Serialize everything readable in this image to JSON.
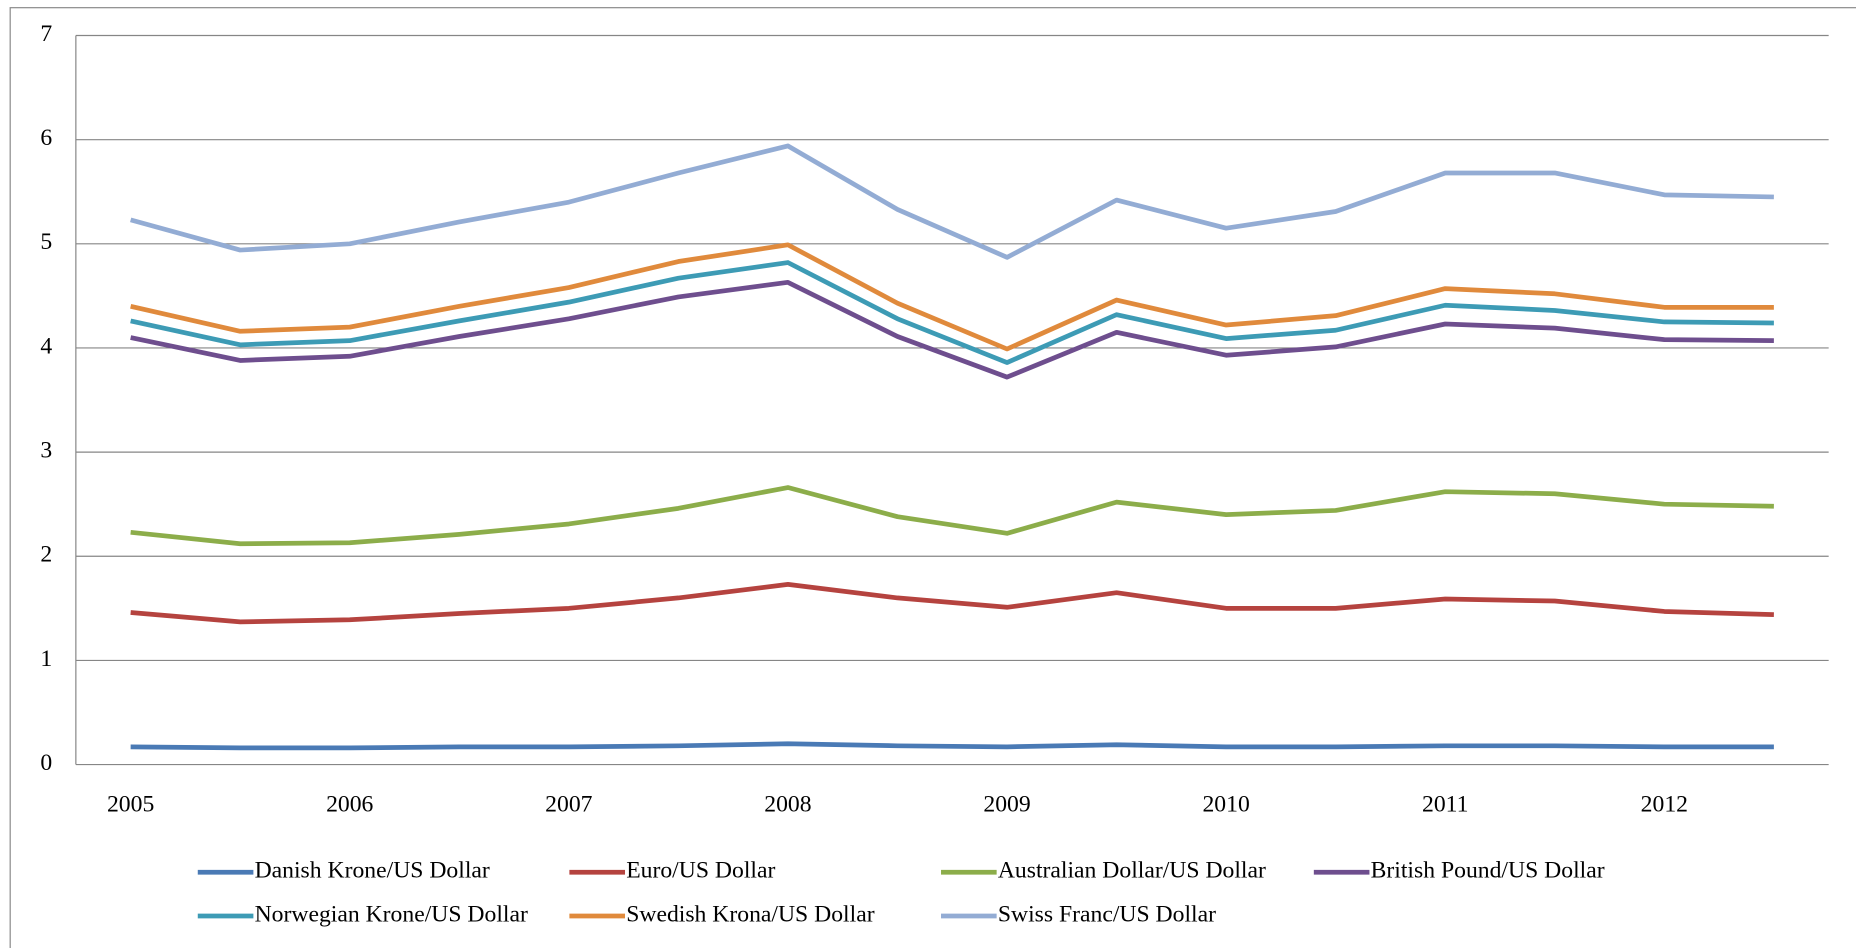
{
  "chart_data": {
    "type": "line",
    "x": [
      2005,
      2005.5,
      2006,
      2006.5,
      2007,
      2007.5,
      2008,
      2008.5,
      2009,
      2009.5,
      2010,
      2010.5,
      2011,
      2011.5,
      2012,
      2012.5
    ],
    "xlim": [
      2004.75,
      2012.75
    ],
    "xticks": [
      2005,
      2006,
      2007,
      2008,
      2009,
      2010,
      2011,
      2012
    ],
    "ylim": [
      0,
      7
    ],
    "yticks": [
      0,
      1,
      2,
      3,
      4,
      5,
      6,
      7
    ],
    "grid": true,
    "legend": "bottom",
    "series": [
      {
        "name": "Danish Krone/US Dollar",
        "color": "#4a7ab5",
        "values": [
          0.17,
          0.16,
          0.16,
          0.17,
          0.17,
          0.18,
          0.2,
          0.18,
          0.17,
          0.19,
          0.17,
          0.17,
          0.18,
          0.18,
          0.17,
          0.17
        ]
      },
      {
        "name": "Euro/US Dollar",
        "color": "#b5433f",
        "values": [
          1.46,
          1.37,
          1.39,
          1.45,
          1.5,
          1.6,
          1.73,
          1.6,
          1.51,
          1.65,
          1.5,
          1.5,
          1.59,
          1.57,
          1.47,
          1.44
        ]
      },
      {
        "name": "Australian Dollar/US Dollar",
        "color": "#8cad4a",
        "values": [
          2.23,
          2.12,
          2.13,
          2.21,
          2.31,
          2.46,
          2.66,
          2.38,
          2.22,
          2.52,
          2.4,
          2.44,
          2.62,
          2.6,
          2.5,
          2.48
        ]
      },
      {
        "name": "British Pound/US Dollar",
        "color": "#6e4e8e",
        "values": [
          4.1,
          3.88,
          3.92,
          4.11,
          4.28,
          4.49,
          4.63,
          4.11,
          3.72,
          4.15,
          3.93,
          4.01,
          4.23,
          4.19,
          4.08,
          4.07
        ]
      },
      {
        "name": "Norwegian Krone/US Dollar",
        "color": "#3d9bb5",
        "values": [
          4.26,
          4.03,
          4.07,
          4.26,
          4.44,
          4.67,
          4.82,
          4.28,
          3.86,
          4.32,
          4.09,
          4.17,
          4.41,
          4.36,
          4.25,
          4.24
        ]
      },
      {
        "name": "Swedish Krona/US Dollar",
        "color": "#e08a3c",
        "values": [
          4.4,
          4.16,
          4.2,
          4.4,
          4.58,
          4.83,
          4.99,
          4.43,
          3.99,
          4.46,
          4.22,
          4.31,
          4.57,
          4.52,
          4.39,
          4.39
        ]
      },
      {
        "name": "Swiss Franc/US Dollar",
        "color": "#93acd4",
        "values": [
          5.23,
          4.94,
          5.0,
          5.21,
          5.4,
          5.68,
          5.94,
          5.33,
          4.87,
          5.42,
          5.15,
          5.31,
          5.68,
          5.68,
          5.47,
          5.45
        ]
      }
    ]
  }
}
